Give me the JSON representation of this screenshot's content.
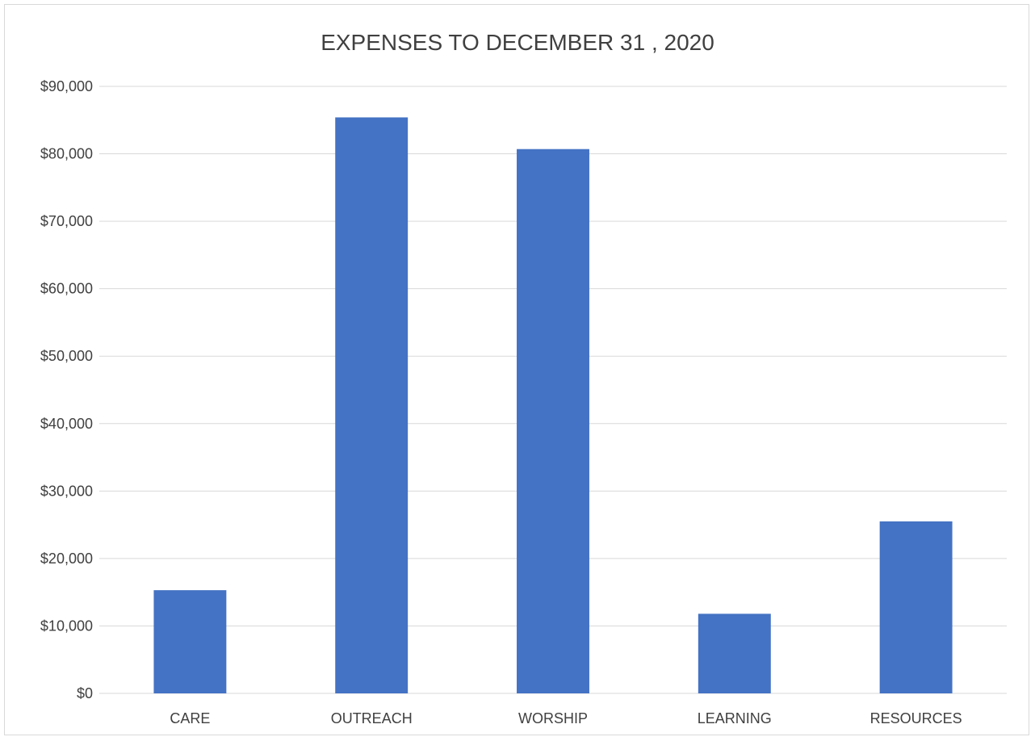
{
  "chart_data": {
    "type": "bar",
    "title": "EXPENSES TO DECEMBER 31 , 2020",
    "categories": [
      "CARE",
      "OUTREACH",
      "WORSHIP",
      "LEARNING",
      "RESOURCES"
    ],
    "values": [
      15300,
      85400,
      80700,
      11800,
      25500
    ],
    "xlabel": "",
    "ylabel": "",
    "ylim": [
      0,
      90000
    ],
    "yticks": [
      0,
      10000,
      20000,
      30000,
      40000,
      50000,
      60000,
      70000,
      80000,
      90000
    ],
    "ytick_labels": [
      "$0",
      "$10,000",
      "$20,000",
      "$30,000",
      "$40,000",
      "$50,000",
      "$60,000",
      "$70,000",
      "$80,000",
      "$90,000"
    ],
    "bar_color": "#4472c4",
    "grid": true,
    "legend": "none"
  }
}
